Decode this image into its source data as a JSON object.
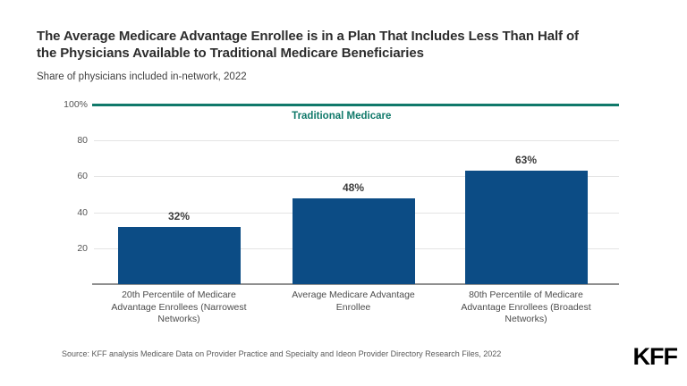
{
  "header": {
    "title": "The Average Medicare Advantage Enrollee is in a Plan That Includes Less Than Half of\nthe Physicians Available to Traditional Medicare Beneficiaries",
    "subtitle": "Share of physicians included in-network, 2022"
  },
  "chart_data": {
    "type": "bar",
    "title": "The Average Medicare Advantage Enrollee is in a Plan That Includes Less Than Half of the Physicians Available to Traditional Medicare Beneficiaries",
    "subtitle": "Share of physicians included in-network, 2022",
    "categories": [
      "20th Percentile of Medicare Advantage Enrollees (Narrowest Networks)",
      "Average Medicare Advantage Enrollee",
      "80th Percentile of Medicare Advantage Enrollees (Broadest Networks)"
    ],
    "values": [
      32,
      48,
      63
    ],
    "value_labels": [
      "32%",
      "48%",
      "63%"
    ],
    "reference_line": {
      "label": "Traditional Medicare",
      "value": 100
    },
    "y_ticks": [
      "100%",
      "80",
      "60",
      "40",
      "20"
    ],
    "y_tick_values": [
      100,
      80,
      60,
      40,
      20
    ],
    "ylim": [
      0,
      100
    ],
    "xlabel": "",
    "ylabel": "",
    "grid": true,
    "legend": "none",
    "bar_color": "#0c4c85",
    "reference_color": "#10796a"
  },
  "footer": {
    "source": "Source: KFF analysis Medicare Data on Provider Practice and Specialty and Ideon Provider Directory Research Files, 2022",
    "logo": "KFF"
  }
}
